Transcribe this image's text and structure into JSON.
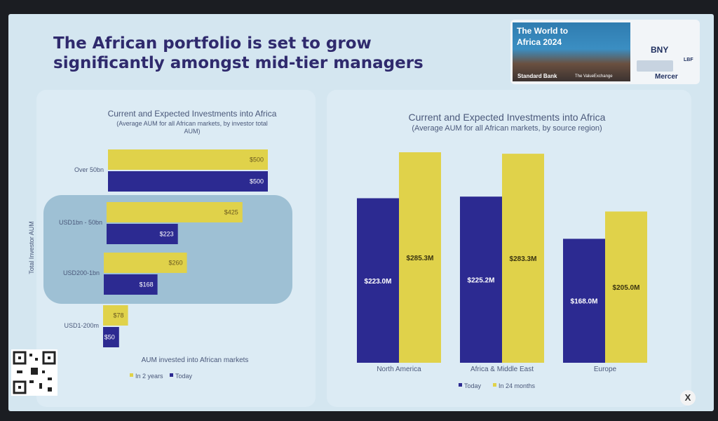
{
  "slide_title": "The African portfolio is set to grow significantly amongst mid-tier managers",
  "banner": {
    "event_title": "The World to Africa 2024",
    "bank": "Standard Bank",
    "exchange": "The ValueExchange",
    "sponsors": [
      "BNY",
      "Mercer",
      "LBF"
    ]
  },
  "colors": {
    "series_future": "#e0d24a",
    "series_today": "#2c2a91",
    "title": "#2f2a6d"
  },
  "chart_data": [
    {
      "type": "bar",
      "orientation": "horizontal",
      "title": "Current and Expected Investments into Africa",
      "subtitle": "(Average AUM for all African markets, by investor total AUM)",
      "xlabel": "AUM invested into African markets",
      "ylabel": "Total Investor AUM",
      "categories": [
        "Over 50bn",
        "USD1bn - 50bn",
        "USD200-1bn",
        "USD1-200m"
      ],
      "series": [
        {
          "name": "In 2 years",
          "values": [
            500,
            425,
            260,
            78
          ],
          "labels": [
            "$500",
            "$425",
            "$260",
            "$78"
          ]
        },
        {
          "name": "Today",
          "values": [
            500,
            223,
            168,
            50
          ],
          "labels": [
            "$500",
            "$223",
            "$168",
            "$50"
          ]
        }
      ],
      "legend": "bottom",
      "grid": false
    },
    {
      "type": "bar",
      "orientation": "vertical",
      "title": "Current and Expected Investments into Africa",
      "subtitle": "(Average AUM for all African markets, by source region)",
      "categories": [
        "North America",
        "Africa & Middle East",
        "Europe"
      ],
      "series": [
        {
          "name": "Today",
          "values": [
            223.0,
            225.2,
            168.0
          ],
          "labels": [
            "$223.0M",
            "$225.2M",
            "$168.0M"
          ]
        },
        {
          "name": "In 24 months",
          "values": [
            285.3,
            283.3,
            205.0
          ],
          "labels": [
            "$285.3M",
            "$283.3M",
            "$205.0M"
          ]
        }
      ],
      "legend": "bottom",
      "grid": false
    }
  ]
}
